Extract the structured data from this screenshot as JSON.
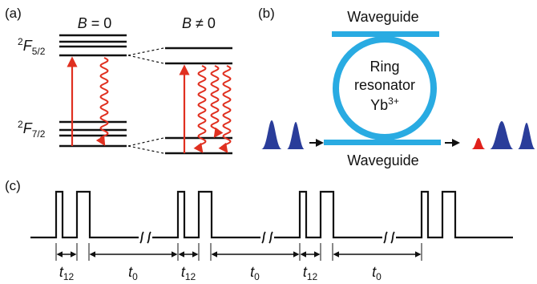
{
  "panel_a": {
    "label": "(a)",
    "col_left": {
      "var": "B",
      "rel": " = 0"
    },
    "col_right": {
      "var": "B",
      "rel": " ≠ 0"
    },
    "upper_term": {
      "sup": "2",
      "letter": "F",
      "sub": "5/2"
    },
    "lower_term": {
      "sup": "2",
      "letter": "F",
      "sub": "7/2"
    }
  },
  "panel_b": {
    "label": "(b)",
    "waveguide_top": "Waveguide",
    "waveguide_bottom": "Waveguide",
    "ring_line1": "Ring",
    "ring_line2": "resonator",
    "ion_base": "Yb",
    "ion_sup": "3+"
  },
  "panel_c": {
    "label": "(c)",
    "interval_labels": [
      {
        "var": "t",
        "sub": "12"
      },
      {
        "var": "t",
        "sub": "0"
      },
      {
        "var": "t",
        "sub": "12"
      },
      {
        "var": "t",
        "sub": "0"
      },
      {
        "var": "t",
        "sub": "12"
      },
      {
        "var": "t",
        "sub": "0"
      }
    ]
  },
  "colors": {
    "line": "#111111",
    "transition": "#e03020",
    "ring": "#29abe2",
    "pulse_blue": "#2a3d9a",
    "pulse_red": "#e0201b"
  }
}
